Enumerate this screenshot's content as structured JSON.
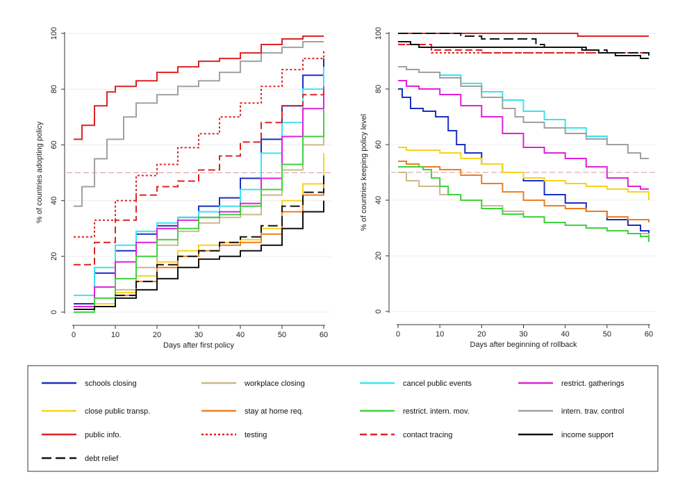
{
  "chart_data": [
    {
      "type": "line",
      "xlabel": "Days after first policy",
      "ylabel": "% of countries adopting policy",
      "xlim": [
        0,
        60
      ],
      "ylim": [
        0,
        100
      ],
      "xticks": [
        "0",
        "10",
        "20",
        "30",
        "40",
        "50",
        "60"
      ],
      "yticks": [
        "0",
        "20",
        "40",
        "60",
        "80",
        "100"
      ],
      "reference_line": 50,
      "grid": true,
      "series": [
        {
          "name": "schools closing",
          "color": "#1a2ec0",
          "dash": "solid",
          "x": [
            0,
            5,
            10,
            15,
            20,
            25,
            30,
            35,
            40,
            45,
            50,
            55,
            60
          ],
          "y": [
            3,
            14,
            22,
            28,
            31,
            34,
            38,
            41,
            48,
            62,
            74,
            85,
            91
          ]
        },
        {
          "name": "workplace closing",
          "color": "#c8b98c",
          "dash": "solid",
          "x": [
            0,
            5,
            10,
            15,
            20,
            25,
            30,
            35,
            40,
            45,
            50,
            55,
            60
          ],
          "y": [
            1,
            3,
            8,
            16,
            24,
            29,
            32,
            34,
            35,
            42,
            51,
            60,
            71
          ]
        },
        {
          "name": "cancel public events",
          "color": "#38e4f0",
          "dash": "solid",
          "x": [
            0,
            5,
            10,
            15,
            20,
            25,
            30,
            35,
            40,
            45,
            50,
            55,
            60
          ],
          "y": [
            6,
            16,
            24,
            29,
            32,
            34,
            36,
            38,
            44,
            57,
            68,
            80,
            88
          ]
        },
        {
          "name": "restrict. gatherings",
          "color": "#e020d8",
          "dash": "solid",
          "x": [
            0,
            5,
            10,
            15,
            20,
            25,
            30,
            35,
            40,
            45,
            50,
            55,
            60
          ],
          "y": [
            2,
            9,
            18,
            25,
            30,
            33,
            34,
            36,
            39,
            48,
            63,
            73,
            81
          ]
        },
        {
          "name": "close public transp.",
          "color": "#f8d21c",
          "dash": "solid",
          "x": [
            0,
            5,
            10,
            15,
            20,
            25,
            30,
            35,
            40,
            45,
            50,
            55,
            60
          ],
          "y": [
            0,
            3,
            7,
            13,
            18,
            22,
            24,
            25,
            26,
            30,
            40,
            46,
            57
          ]
        },
        {
          "name": "stay at home req.",
          "color": "#ee7d20",
          "dash": "solid",
          "x": [
            0,
            5,
            10,
            15,
            20,
            25,
            30,
            35,
            40,
            45,
            50,
            55,
            60
          ],
          "y": [
            0,
            2,
            6,
            11,
            16,
            20,
            22,
            24,
            25,
            28,
            36,
            42,
            49
          ]
        },
        {
          "name": "restrict. intern. mov.",
          "color": "#3ed13e",
          "dash": "solid",
          "x": [
            0,
            5,
            10,
            15,
            20,
            25,
            30,
            35,
            40,
            45,
            50,
            55,
            60
          ],
          "y": [
            0,
            5,
            12,
            20,
            26,
            30,
            34,
            35,
            38,
            44,
            53,
            63,
            73
          ]
        },
        {
          "name": "intern. trav. control",
          "color": "#a0a0a0",
          "dash": "solid",
          "x": [
            0,
            2,
            5,
            8,
            12,
            15,
            20,
            25,
            30,
            35,
            40,
            45,
            50,
            55,
            60
          ],
          "y": [
            38,
            45,
            55,
            62,
            70,
            75,
            78,
            81,
            83,
            86,
            90,
            93,
            95,
            97,
            97
          ]
        },
        {
          "name": "public info.",
          "color": "#dd2222",
          "dash": "solid",
          "x": [
            0,
            2,
            5,
            8,
            10,
            15,
            20,
            25,
            30,
            35,
            40,
            45,
            50,
            55,
            60
          ],
          "y": [
            62,
            67,
            74,
            79,
            81,
            83,
            86,
            88,
            90,
            91,
            93,
            96,
            98,
            99,
            99
          ]
        },
        {
          "name": "testing",
          "color": "#dd2222",
          "dash": "dotted",
          "x": [
            0,
            5,
            10,
            15,
            20,
            25,
            30,
            35,
            40,
            45,
            50,
            55,
            60
          ],
          "y": [
            27,
            33,
            40,
            49,
            53,
            59,
            64,
            70,
            75,
            81,
            87,
            91,
            94
          ]
        },
        {
          "name": "contact tracing",
          "color": "#dd2222",
          "dash": "dashed",
          "x": [
            0,
            5,
            10,
            15,
            20,
            25,
            30,
            35,
            40,
            45,
            50,
            55,
            60
          ],
          "y": [
            17,
            25,
            33,
            42,
            45,
            47,
            51,
            56,
            61,
            68,
            74,
            78,
            80
          ]
        },
        {
          "name": "income support",
          "color": "#111111",
          "dash": "solid",
          "x": [
            0,
            5,
            10,
            15,
            20,
            25,
            30,
            35,
            40,
            45,
            50,
            55,
            60
          ],
          "y": [
            1,
            2,
            5,
            8,
            12,
            16,
            19,
            20,
            22,
            24,
            30,
            36,
            40
          ]
        },
        {
          "name": "debt relief",
          "color": "#111111",
          "dash": "longdash",
          "x": [
            0,
            5,
            10,
            15,
            20,
            25,
            30,
            35,
            40,
            45,
            50,
            55,
            60
          ],
          "y": [
            1,
            2,
            6,
            11,
            17,
            20,
            22,
            25,
            27,
            31,
            38,
            43,
            49
          ]
        }
      ]
    },
    {
      "type": "line",
      "xlabel": "Days after beginning of rollback",
      "ylabel": "% of countries keeping policy level",
      "xlim": [
        0,
        60
      ],
      "ylim": [
        0,
        100
      ],
      "xticks": [
        "0",
        "10",
        "20",
        "30",
        "40",
        "50",
        "60"
      ],
      "yticks": [
        "0",
        "20",
        "40",
        "60",
        "80",
        "100"
      ],
      "reference_line": 50,
      "grid": true,
      "series": [
        {
          "name": "schools closing",
          "color": "#1a2ec0",
          "dash": "solid",
          "x": [
            0,
            1,
            3,
            6,
            9,
            12,
            14,
            16,
            20,
            25,
            30,
            35,
            40,
            45,
            50,
            55,
            58,
            60
          ],
          "y": [
            80,
            77,
            73,
            72,
            70,
            65,
            60,
            57,
            53,
            50,
            47,
            42,
            39,
            36,
            33,
            31,
            29,
            28
          ]
        },
        {
          "name": "workplace closing",
          "color": "#c8b98c",
          "dash": "solid",
          "x": [
            0,
            2,
            5,
            10,
            15,
            20,
            25,
            30,
            35,
            40,
            45,
            50,
            55,
            60
          ],
          "y": [
            50,
            47,
            45,
            42,
            40,
            38,
            36,
            34,
            32,
            31,
            30,
            29,
            28,
            27
          ]
        },
        {
          "name": "cancel public events",
          "color": "#38e4f0",
          "dash": "solid",
          "x": [
            0,
            2,
            5,
            10,
            15,
            20,
            25,
            30,
            35,
            40,
            45,
            50,
            55,
            58,
            60
          ],
          "y": [
            88,
            87,
            86,
            85,
            82,
            79,
            76,
            72,
            69,
            66,
            63,
            60,
            57,
            55,
            55
          ]
        },
        {
          "name": "restrict. gatherings",
          "color": "#e020d8",
          "dash": "solid",
          "x": [
            0,
            2,
            5,
            10,
            15,
            20,
            25,
            30,
            35,
            40,
            45,
            50,
            55,
            58,
            60
          ],
          "y": [
            83,
            81,
            80,
            78,
            74,
            70,
            64,
            59,
            57,
            55,
            52,
            48,
            45,
            44,
            44
          ]
        },
        {
          "name": "close public transp.",
          "color": "#f8d21c",
          "dash": "solid",
          "x": [
            0,
            2,
            5,
            10,
            15,
            20,
            25,
            30,
            35,
            40,
            45,
            50,
            55,
            60
          ],
          "y": [
            59,
            58,
            58,
            57,
            55,
            53,
            50,
            48,
            47,
            46,
            45,
            44,
            43,
            40
          ]
        },
        {
          "name": "stay at home req.",
          "color": "#ee7d20",
          "dash": "solid",
          "x": [
            0,
            2,
            5,
            10,
            15,
            20,
            25,
            30,
            35,
            40,
            45,
            50,
            55,
            60
          ],
          "y": [
            54,
            53,
            52,
            51,
            49,
            46,
            43,
            40,
            38,
            37,
            36,
            34,
            33,
            32
          ]
        },
        {
          "name": "restrict. intern. mov.",
          "color": "#3ed13e",
          "dash": "solid",
          "x": [
            0,
            3,
            6,
            8,
            10,
            12,
            15,
            20,
            25,
            30,
            35,
            40,
            45,
            50,
            55,
            58,
            60
          ],
          "y": [
            52,
            52,
            51,
            48,
            45,
            42,
            40,
            37,
            35,
            34,
            32,
            31,
            30,
            29,
            28,
            27,
            25
          ]
        },
        {
          "name": "intern. trav. control",
          "color": "#a0a0a0",
          "dash": "solid",
          "x": [
            0,
            2,
            5,
            10,
            15,
            20,
            25,
            28,
            30,
            35,
            40,
            45,
            50,
            55,
            58,
            60
          ],
          "y": [
            88,
            87,
            86,
            84,
            81,
            77,
            73,
            70,
            68,
            66,
            64,
            62,
            60,
            57,
            55,
            55
          ]
        },
        {
          "name": "public info.",
          "color": "#dd2222",
          "dash": "solid",
          "x": [
            0,
            10,
            20,
            30,
            40,
            43,
            50,
            60
          ],
          "y": [
            100,
            100,
            100,
            100,
            100,
            99,
            99,
            99
          ]
        },
        {
          "name": "testing",
          "color": "#dd2222",
          "dash": "dotted",
          "x": [
            0,
            5,
            8,
            10,
            20,
            30,
            40,
            50,
            60
          ],
          "y": [
            96,
            95,
            93,
            93,
            93,
            93,
            93,
            93,
            93
          ]
        },
        {
          "name": "contact tracing",
          "color": "#dd2222",
          "dash": "dashed",
          "x": [
            0,
            5,
            8,
            10,
            15,
            20,
            30,
            40,
            50,
            60
          ],
          "y": [
            96,
            96,
            94,
            94,
            94,
            93,
            93,
            93,
            93,
            92
          ]
        },
        {
          "name": "income support",
          "color": "#111111",
          "dash": "solid",
          "x": [
            0,
            1,
            3,
            5,
            10,
            20,
            30,
            40,
            44,
            48,
            52,
            56,
            58,
            60
          ],
          "y": [
            97,
            97,
            96,
            95,
            95,
            95,
            95,
            95,
            94,
            93,
            92,
            92,
            91,
            91
          ]
        },
        {
          "name": "debt relief",
          "color": "#111111",
          "dash": "longdash",
          "x": [
            0,
            10,
            15,
            20,
            25,
            30,
            33,
            35,
            40,
            45,
            50,
            55,
            60
          ],
          "y": [
            100,
            100,
            99,
            98,
            98,
            98,
            96,
            95,
            95,
            94,
            93,
            93,
            92
          ]
        }
      ]
    }
  ],
  "legend": {
    "placement": "bottom",
    "columns": 4
  }
}
